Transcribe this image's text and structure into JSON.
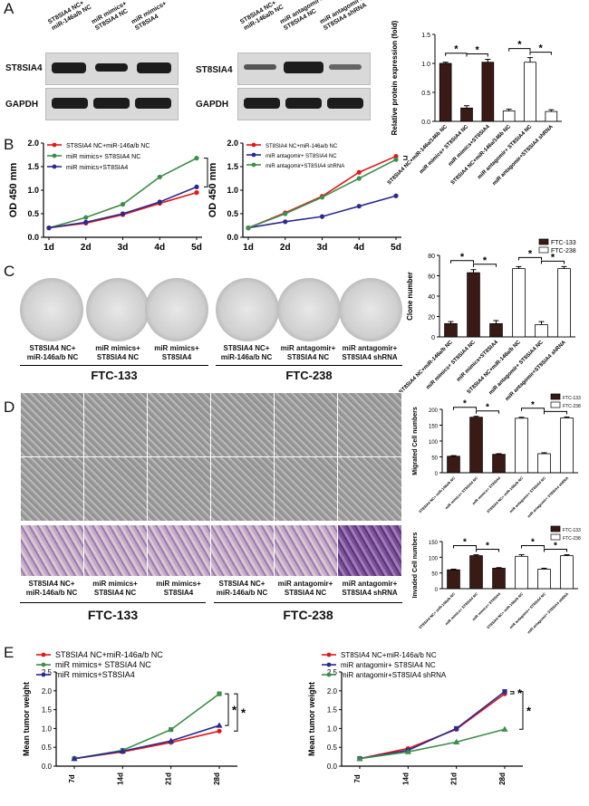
{
  "panels": {
    "A": "A",
    "B": "B",
    "C": "C",
    "D": "D",
    "E": "E"
  },
  "blots": {
    "left_lanes": [
      "ST8SIA4 NC+\nmiR-146a/b NC",
      "miR mimics+\nST8SIA4 NC",
      "miR mimics+\nST8SIA4"
    ],
    "right_lanes": [
      "ST8SIA4 NC+\nmiR-146a/b NC",
      "miR antagomir+\nST8SIA4 NC",
      "miR antagomir+\nST8SIA4 shRNA"
    ],
    "st8sia4": "ST8SIA4",
    "gapdh": "GAPDH"
  },
  "groups": {
    "g1": "ST8SIA4 NC+\nmiR-146a/b NC",
    "g2": "miR mimics+\nST8SIA4 NC",
    "g3": "miR mimics+\nST8SIA4",
    "g4": "ST8SIA4 NC+\nmiR-146a/b NC",
    "g5": "miR antagomir+\nST8SIA4 NC",
    "g6": "miR antagomir+\nST8SIA4 shRNA",
    "ftc133": "FTC-133",
    "ftc238": "FTC-238"
  },
  "chart_data": [
    {
      "type": "bar",
      "panel": "A",
      "ylabel": "Relative protein expression (fold)",
      "ylim": [
        0,
        1.5
      ],
      "yticks": [
        "0.0",
        "0.5",
        "1.0",
        "1.5"
      ],
      "categories": [
        "ST8SIA4 NC+miR-146a/146b NC",
        "miR mimics+ ST8SIA4 NC",
        "miR mimics+ST8SIA4",
        "ST8SIA4 NC+miR-146a/146b NC",
        "miR antagomir+ ST8SIA4 NC",
        "miR antagomir+ST8SIA4 shRNA"
      ],
      "values": [
        1.0,
        0.23,
        1.02,
        0.18,
        1.02,
        0.17
      ],
      "errors": [
        0.02,
        0.04,
        0.05,
        0.03,
        0.08,
        0.03
      ],
      "fills": [
        "#3a1a14",
        "#3a1a14",
        "#3a1a14",
        "#ffffff",
        "#ffffff",
        "#ffffff"
      ]
    },
    {
      "type": "line",
      "panel": "B-left",
      "ylabel": "OD 450 mm",
      "ylim": [
        0,
        2.0
      ],
      "yticks": [
        "0.0",
        "0.5",
        "1.0",
        "1.5",
        "2.0"
      ],
      "x": [
        "1d",
        "2d",
        "3d",
        "4d",
        "5d"
      ],
      "series": [
        {
          "name": "ST8SIA4 NC+miR-146a/b NC",
          "values": [
            0.2,
            0.3,
            0.48,
            0.72,
            0.95
          ],
          "color": "#e0191b"
        },
        {
          "name": "miR mimics+ ST8SIA4 NC",
          "values": [
            0.2,
            0.42,
            0.7,
            1.28,
            1.68
          ],
          "color": "#3e8d4a"
        },
        {
          "name": "miR mimics+ST8SIA4",
          "values": [
            0.2,
            0.32,
            0.5,
            0.75,
            1.07
          ],
          "color": "#2b2a8f"
        }
      ],
      "sig": [
        "*",
        "*"
      ]
    },
    {
      "type": "line",
      "panel": "B-right",
      "ylabel": "OD 450 mm",
      "ylim": [
        0,
        2.0
      ],
      "yticks": [
        "0.0",
        "0.5",
        "1.0",
        "1.5",
        "2.0"
      ],
      "x": [
        "1d",
        "2d",
        "3d",
        "4d",
        "5d"
      ],
      "series": [
        {
          "name": "ST8SIA4 NC+miR-146a/b NC",
          "values": [
            0.2,
            0.52,
            0.87,
            1.38,
            1.72
          ],
          "color": "#e0191b"
        },
        {
          "name": "miR antagomir+ ST8SIA4 NC",
          "values": [
            0.2,
            0.33,
            0.44,
            0.66,
            0.88
          ],
          "color": "#2b2a8f"
        },
        {
          "name": "miR antagomir+ST8SIA4 shRNA",
          "values": [
            0.2,
            0.5,
            0.85,
            1.25,
            1.65
          ],
          "color": "#3e8d4a"
        }
      ],
      "sig": [
        "*",
        "*"
      ]
    },
    {
      "type": "bar",
      "panel": "C",
      "ylabel": "Clone number",
      "ylim": [
        0,
        80
      ],
      "yticks": [
        "0",
        "20",
        "40",
        "60",
        "80"
      ],
      "legend": [
        "FTC-133",
        "FTC-238"
      ],
      "categories": [
        "ST8SIA4 NC+miR-146a/b NC",
        "miR mimics+ ST8SIA4 NC",
        "miR mimics+ST8SIA4",
        "ST8SIA4 NC+miR-146a/b NC",
        "miR antagomir+ ST8SIA4 NC",
        "miR antagomir+ST8SIA4 shRNA"
      ],
      "values": [
        13,
        63,
        13,
        67,
        12,
        67
      ],
      "errors": [
        2,
        3,
        3,
        2,
        3,
        2
      ],
      "fills": [
        "#3a1a14",
        "#3a1a14",
        "#3a1a14",
        "#ffffff",
        "#ffffff",
        "#ffffff"
      ]
    },
    {
      "type": "bar",
      "panel": "D-migration",
      "ylabel": "Migrated Cell numbers",
      "ylim": [
        0,
        200
      ],
      "yticks": [
        "0",
        "50",
        "100",
        "150",
        "200"
      ],
      "legend": [
        "FTC-133",
        "FTC-238"
      ],
      "categories": [
        "ST8SIA4 NC+ miR-146a/b NC",
        "miR mimics+ ST8SIA4 NC",
        "miR mimics+ ST8SIA4",
        "ST8SIA4 NC+ miR-146a/b NC",
        "miR antagomir+ ST8SIA4 NC",
        "miR antagomir+ ST8SIA4 shRNA"
      ],
      "values": [
        52,
        175,
        58,
        172,
        60,
        173
      ],
      "errors": [
        2,
        3,
        2,
        3,
        3,
        3
      ],
      "fills": [
        "#3a1a14",
        "#3a1a14",
        "#3a1a14",
        "#ffffff",
        "#ffffff",
        "#ffffff"
      ]
    },
    {
      "type": "bar",
      "panel": "D-invasion",
      "ylabel": "Invaded Cell numbers",
      "ylim": [
        0,
        150
      ],
      "yticks": [
        "0",
        "50",
        "100",
        "150"
      ],
      "legend": [
        "FTC-133",
        "FTC-238"
      ],
      "categories": [
        "ST8SIA4 NC+ miR-146a/b NC",
        "miR mimics+ ST8SIA4 NC",
        "miR mimics+ ST8SIA4",
        "ST8SIA4 NC+ miR-146a/b NC",
        "miR antagomir+ ST8SIA4 NC",
        "miR antagomir+ ST8SIA4 shRNA"
      ],
      "values": [
        60,
        105,
        65,
        103,
        62,
        105
      ],
      "errors": [
        2,
        3,
        2,
        5,
        3,
        3
      ],
      "fills": [
        "#3a1a14",
        "#3a1a14",
        "#3a1a14",
        "#ffffff",
        "#ffffff",
        "#ffffff"
      ]
    },
    {
      "type": "line",
      "panel": "E-left",
      "ylabel": "Mean tumor weight",
      "ylim": [
        0,
        2.5
      ],
      "yticks": [
        "0.0",
        "0.5",
        "1.0",
        "1.5",
        "2.0",
        "2.5"
      ],
      "x": [
        "7d",
        "14d",
        "21d",
        "28d"
      ],
      "series": [
        {
          "name": "ST8SIA4 NC+miR-146a/b NC",
          "values": [
            0.2,
            0.38,
            0.63,
            0.93
          ],
          "color": "#e0191b",
          "marker": "circle"
        },
        {
          "name": "miR mimics+ ST8SIA4 NC",
          "values": [
            0.2,
            0.42,
            0.97,
            1.92
          ],
          "color": "#3e8d4a",
          "marker": "square"
        },
        {
          "name": "miR mimics+ST8SIA4",
          "values": [
            0.2,
            0.4,
            0.67,
            1.08
          ],
          "color": "#2b2a8f",
          "marker": "triangle"
        }
      ],
      "sig": [
        "*",
        "*"
      ]
    },
    {
      "type": "line",
      "panel": "E-right",
      "ylabel": "Mean tumor weight",
      "ylim": [
        0,
        2.5
      ],
      "yticks": [
        "0.0",
        "0.5",
        "1.0",
        "1.5",
        "2.0",
        "2.5"
      ],
      "x": [
        "7d",
        "14d",
        "21d",
        "28d"
      ],
      "series": [
        {
          "name": "ST8SIA4 NC+miR-146a/b NC",
          "values": [
            0.2,
            0.47,
            0.98,
            1.92
          ],
          "color": "#e0191b",
          "marker": "circle"
        },
        {
          "name": "miR antagomir+ ST8SIA4 NC",
          "values": [
            0.2,
            0.42,
            1.0,
            1.98
          ],
          "color": "#2b2a8f",
          "marker": "square"
        },
        {
          "name": "miR antagomir+ST8SIA4 shRNA",
          "values": [
            0.2,
            0.38,
            0.64,
            0.98
          ],
          "color": "#3e8d4a",
          "marker": "triangle"
        }
      ],
      "sig": [
        "*",
        "*"
      ]
    }
  ]
}
